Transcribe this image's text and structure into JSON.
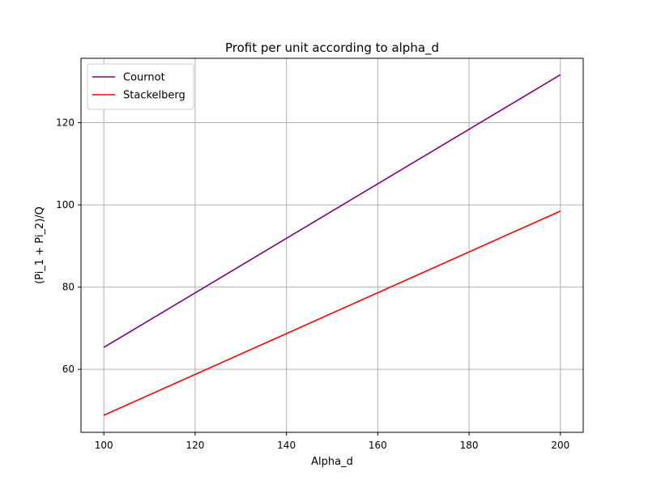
{
  "chart_data": {
    "type": "line",
    "title": "Profit per unit according to alpha_d",
    "xlabel": "Alpha_d",
    "ylabel": "(Pi_1 + Pi_2)/Q",
    "xlim": [
      95,
      205
    ],
    "ylim": [
      44.67,
      135.67
    ],
    "xticks": [
      100,
      120,
      140,
      160,
      180,
      200
    ],
    "yticks": [
      60,
      80,
      100,
      120
    ],
    "grid": true,
    "legend_position": "top-left",
    "series": [
      {
        "name": "Cournot",
        "color": "#800080",
        "x": [
          100,
          200
        ],
        "y": [
          65.33,
          131.67
        ]
      },
      {
        "name": "Stackelberg",
        "color": "#ff0000",
        "x": [
          100,
          200
        ],
        "y": [
          48.83,
          98.5
        ]
      }
    ]
  }
}
